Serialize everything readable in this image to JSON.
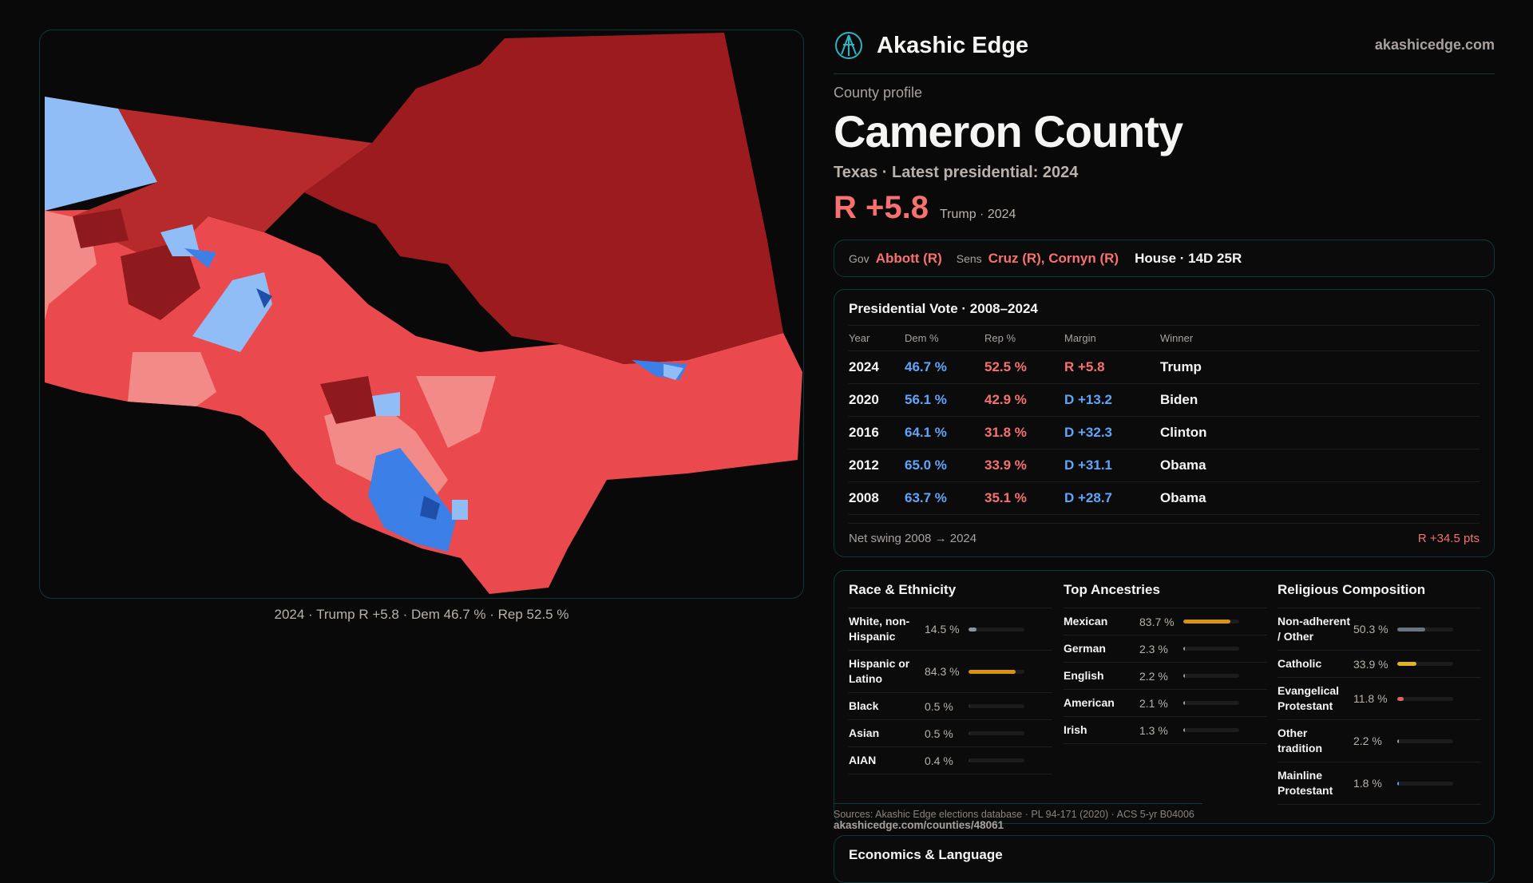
{
  "brand": {
    "name": "Akashic Edge",
    "site": "akashicedge.com",
    "logo_icon": "compass-logo-icon"
  },
  "map": {
    "caption": "2024 · Trump R +5.8 · Dem 46.7 % · Rep 52.5 %",
    "colors": {
      "dark_red": "#9c1b1f",
      "red": "#b72a2c",
      "mid_red": "#ea4a4d",
      "pink": "#f28b88",
      "light_blue": "#90bdf5",
      "blue": "#3c7fe6",
      "dark_blue": "#1f4fa8"
    }
  },
  "profile": {
    "kicker": "County profile",
    "title": "Cameron County",
    "subtitle": "Texas · Latest presidential: 2024",
    "margin": "R +5.8",
    "margin_note": "Trump · 2024"
  },
  "officials": {
    "gov_label": "Gov",
    "gov": "Abbott (R)",
    "sens_label": "Sens",
    "sens": "Cruz (R), Cornyn (R)",
    "house": "House · 14D 25R"
  },
  "presidential": {
    "title": "Presidential Vote · 2008–2024",
    "headers": [
      "Year",
      "Dem %",
      "Rep %",
      "Margin",
      "Winner"
    ],
    "rows": [
      {
        "year": "2024",
        "dem": "46.7 %",
        "rep": "52.5 %",
        "margin": "R +5.8",
        "party": "R",
        "winner": "Trump"
      },
      {
        "year": "2020",
        "dem": "56.1 %",
        "rep": "42.9 %",
        "margin": "D +13.2",
        "party": "D",
        "winner": "Biden"
      },
      {
        "year": "2016",
        "dem": "64.1 %",
        "rep": "31.8 %",
        "margin": "D +32.3",
        "party": "D",
        "winner": "Clinton"
      },
      {
        "year": "2012",
        "dem": "65.0 %",
        "rep": "33.9 %",
        "margin": "D +31.1",
        "party": "D",
        "winner": "Obama"
      },
      {
        "year": "2008",
        "dem": "63.7 %",
        "rep": "35.1 %",
        "margin": "D +28.7",
        "party": "D",
        "winner": "Obama"
      }
    ],
    "swing_label": "Net swing 2008 → 2024",
    "swing_value": "R +34.5 pts"
  },
  "race": {
    "title": "Race & Ethnicity",
    "items": [
      {
        "name": "White, non-Hispanic",
        "pct": "14.5 %",
        "value": 14.5,
        "color": "#8b93a3"
      },
      {
        "name": "Hispanic or Latino",
        "pct": "84.3 %",
        "value": 84.3,
        "color": "#d9930f"
      },
      {
        "name": "Black",
        "pct": "0.5 %",
        "value": 0.5,
        "color": "#2a2a2c"
      },
      {
        "name": "Asian",
        "pct": "0.5 %",
        "value": 0.5,
        "color": "#2a2a2c"
      },
      {
        "name": "AIAN",
        "pct": "0.4 %",
        "value": 0.4,
        "color": "#2a2a2c"
      }
    ]
  },
  "ancestry": {
    "title": "Top Ancestries",
    "items": [
      {
        "name": "Mexican",
        "pct": "83.7 %",
        "value": 83.7,
        "color": "#d9930f"
      },
      {
        "name": "German",
        "pct": "2.3 %",
        "value": 2.3,
        "color": "#9ca3af"
      },
      {
        "name": "English",
        "pct": "2.2 %",
        "value": 2.2,
        "color": "#9ca3af"
      },
      {
        "name": "American",
        "pct": "2.1 %",
        "value": 2.1,
        "color": "#9ca3af"
      },
      {
        "name": "Irish",
        "pct": "1.3 %",
        "value": 1.3,
        "color": "#9ca3af"
      }
    ]
  },
  "religion": {
    "title": "Religious Composition",
    "items": [
      {
        "name": "Non-adherent / Other",
        "pct": "50.3 %",
        "value": 50.3,
        "color": "#6b7280"
      },
      {
        "name": "Catholic",
        "pct": "33.9 %",
        "value": 33.9,
        "color": "#e2b323"
      },
      {
        "name": "Evangelical Protestant",
        "pct": "11.8 %",
        "value": 11.8,
        "color": "#e06262"
      },
      {
        "name": "Other tradition",
        "pct": "2.2 %",
        "value": 2.2,
        "color": "#9ca3af"
      },
      {
        "name": "Mainline Protestant",
        "pct": "1.8 %",
        "value": 1.8,
        "color": "#60a5fa"
      }
    ]
  },
  "footer": {
    "sources": "Sources: Akashic Edge elections database · PL 94-171 (2020) · ACS 5-yr B04006",
    "link": "akashicedge.com/counties/48061"
  },
  "econ": {
    "title": "Economics & Language"
  }
}
